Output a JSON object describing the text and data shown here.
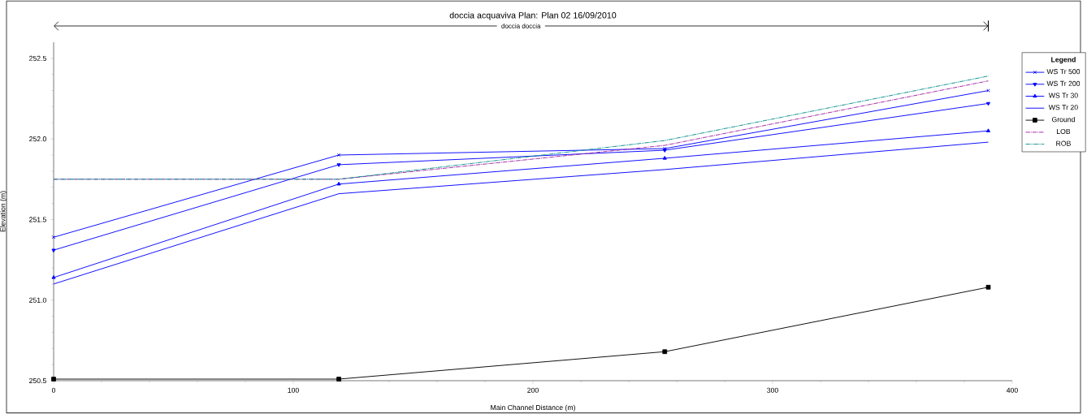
{
  "chart_data": {
    "type": "line",
    "title": "doccia acquaviva      Plan: Plan 02     16/09/2010",
    "xlabel": "Main Channel Distance (m)",
    "ylabel": "Elevation (m)",
    "legend_title": "Legend",
    "annotations": [
      "doccia doccia"
    ],
    "x": [
      0,
      119,
      255,
      390
    ],
    "series": [
      {
        "name": "WS  Tr 500",
        "color": "#0000ff",
        "marker": "cross",
        "line_style": "solid",
        "values": [
          251.39,
          251.9,
          251.94,
          252.3
        ]
      },
      {
        "name": "WS  Tr 200",
        "color": "#0000ff",
        "marker": "triangle_down",
        "line_style": "solid",
        "values": [
          251.31,
          251.84,
          251.93,
          252.22
        ]
      },
      {
        "name": "WS  Tr 30",
        "color": "#0000ff",
        "marker": "triangle",
        "line_style": "solid",
        "values": [
          251.14,
          251.72,
          251.88,
          252.05
        ]
      },
      {
        "name": "WS  Tr 20",
        "color": "#0000ff",
        "marker": "none",
        "line_style": "solid",
        "values": [
          251.1,
          251.66,
          251.81,
          251.98
        ]
      },
      {
        "name": "Ground",
        "color": "#000000",
        "marker": "square",
        "line_style": "solid",
        "values": [
          250.51,
          250.51,
          250.68,
          251.08
        ]
      },
      {
        "name": "LOB",
        "color": "#a020a0",
        "marker": "none",
        "line_style": "dashdot",
        "values": [
          251.75,
          251.75,
          251.96,
          252.36
        ]
      },
      {
        "name": "ROB",
        "color": "#008b8b",
        "marker": "none",
        "line_style": "dashdotdot",
        "values": [
          251.75,
          251.75,
          251.99,
          252.39
        ]
      }
    ],
    "xlim": [
      0,
      400
    ],
    "ylim": [
      250.5,
      252.6
    ],
    "xticks": [
      0,
      100,
      200,
      300,
      400
    ],
    "yticks": [
      250.5,
      {
        "value": 251.0,
        "label": "251.0"
      },
      251.5,
      {
        "value": 252.0,
        "label": "252.0"
      },
      252.5
    ],
    "grid": false,
    "legend": "right"
  }
}
